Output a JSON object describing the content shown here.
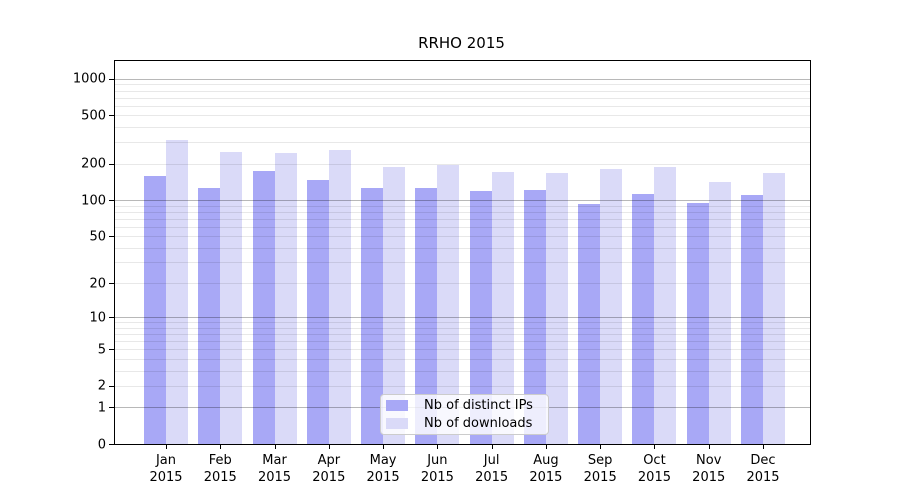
{
  "chart_data": {
    "type": "bar",
    "title": "RRHO 2015",
    "y_scale": "log10(value+1)",
    "ylim": [
      0,
      1400
    ],
    "y_ticks": [
      1000,
      500,
      200,
      100,
      50,
      20,
      10,
      5,
      2,
      1,
      0
    ],
    "grid": "horizontal, log minors light, powers-of-ten darker, drawn over bars",
    "legend_position": "inside bottom-center",
    "categories": [
      "Jan",
      "Feb",
      "Mar",
      "Apr",
      "May",
      "Jun",
      "Jul",
      "Aug",
      "Sep",
      "Oct",
      "Nov",
      "Dec"
    ],
    "x_sublabel": "2015",
    "series": [
      {
        "name": "Nb of distinct IPs",
        "color": "#a8a8f6",
        "values": [
          157,
          125,
          173,
          147,
          126,
          127,
          118,
          121,
          92,
          112,
          94,
          110
        ]
      },
      {
        "name": "Nb of downloads",
        "color": "#dadaf8",
        "values": [
          315,
          250,
          245,
          261,
          189,
          194,
          170,
          168,
          179,
          189,
          140,
          167
        ]
      }
    ]
  },
  "colors": {
    "background": "#ffffff",
    "spine": "#000000",
    "major_grid": "rgba(0,0,0,0.28)",
    "minor_grid": "rgba(0,0,0,0.09)",
    "legend_border": "#cccccc",
    "legend_background": "rgba(255,255,255,0.8)",
    "text": "#000000"
  }
}
